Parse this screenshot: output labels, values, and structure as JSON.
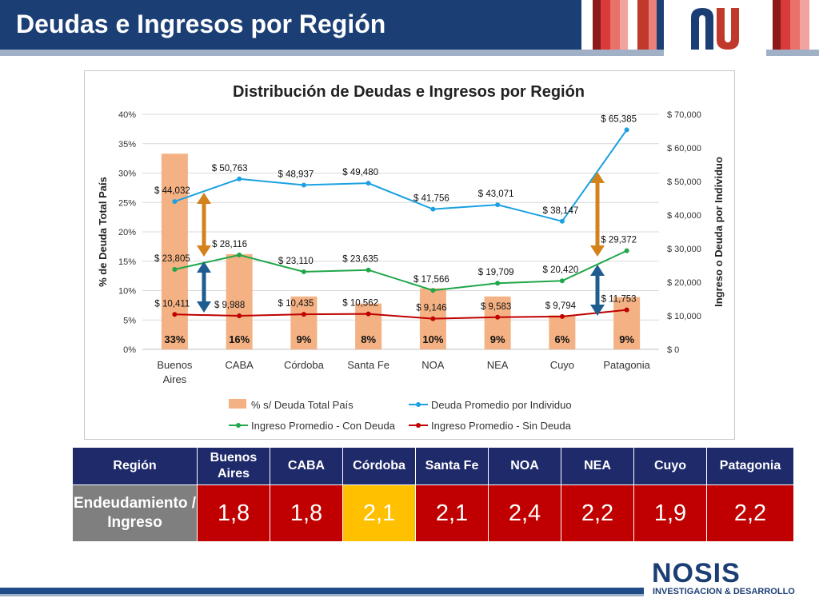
{
  "page": {
    "title": "Deudas e Ingresos por Región"
  },
  "colors": {
    "header": "#1b3f74",
    "bar": "#f4b183",
    "deuda_line": "#1ba1e2",
    "con_deuda_line": "#1fa74a",
    "sin_deuda_line": "#c00000",
    "arrow_orange": "#d4831c",
    "arrow_blue": "#1f5d91",
    "table_header": "#1f2a6b",
    "table_cell": "#c00000",
    "table_highlight": "#ffc000",
    "table_rowhead": "#7f7f7f"
  },
  "chart_data": {
    "type": "bar",
    "title": "Distribución de Deudas e Ingresos por Región",
    "ylabel": "% de Deuda Total País",
    "y2label": "Ingreso o Deuda por Individuo",
    "ylim": [
      0,
      40
    ],
    "y2lim": [
      0,
      70000
    ],
    "yticks": [
      "0%",
      "5%",
      "10%",
      "15%",
      "20%",
      "25%",
      "30%",
      "35%",
      "40%"
    ],
    "y2ticks": [
      "$ 0",
      "$ 10,000",
      "$ 20,000",
      "$ 30,000",
      "$ 40,000",
      "$ 50,000",
      "$ 60,000",
      "$ 70,000"
    ],
    "categories": [
      "Buenos\nAires",
      "CABA",
      "Córdoba",
      "Santa Fe",
      "NOA",
      "NEA",
      "Cuyo",
      "Patagonia"
    ],
    "legend_position": "bottom",
    "bars": {
      "name": "% s/ Deuda Total País",
      "values": [
        33.3,
        16.2,
        9,
        7.8,
        10.4,
        9,
        5.8,
        8.9
      ],
      "labels": [
        "33%",
        "16%",
        "9%",
        "8%",
        "10%",
        "9%",
        "6%",
        "9%"
      ]
    },
    "series": [
      {
        "name": "Deuda Promedio por Individuo",
        "values": [
          44032,
          50763,
          48937,
          49480,
          41756,
          43071,
          38147,
          65385
        ],
        "labels": [
          "$ 44,032",
          "$ 50,763",
          "$ 48,937",
          "$ 49,480",
          "$ 41,756",
          "$ 43,071",
          "$ 38,147",
          "$ 65,385"
        ]
      },
      {
        "name": "Ingreso Promedio - Con Deuda",
        "values": [
          23805,
          28116,
          23110,
          23635,
          17566,
          19709,
          20420,
          29372
        ],
        "labels": [
          "$ 23,805",
          "$ 28,116",
          "$ 23,110",
          "$ 23,635",
          "$ 17,566",
          "$ 19,709",
          "$ 20,420",
          "$ 29,372"
        ]
      },
      {
        "name": "Ingreso Promedio - Sin Deuda",
        "values": [
          10411,
          9988,
          10435,
          10562,
          9146,
          9583,
          9794,
          11753
        ],
        "labels": [
          "$ 10,411",
          "$ 9,988",
          "$ 10,435",
          "$ 10,562",
          "$ 9,146",
          "$ 9,583",
          "$ 9,794",
          "$ 11,753"
        ]
      }
    ]
  },
  "table": {
    "headers": [
      "Región",
      "Buenos Aires",
      "CABA",
      "Córdoba",
      "Santa Fe",
      "NOA",
      "NEA",
      "Cuyo",
      "Patagonia"
    ],
    "row_label": "Endeudamiento / Ingreso",
    "values": [
      "1,8",
      "1,8",
      "2,1",
      "2,1",
      "2,4",
      "2,2",
      "1,9",
      "2,2"
    ]
  },
  "logo": {
    "brand": "NOSIS",
    "subtitle": "INVESTIGACION & DESARROLLO"
  }
}
